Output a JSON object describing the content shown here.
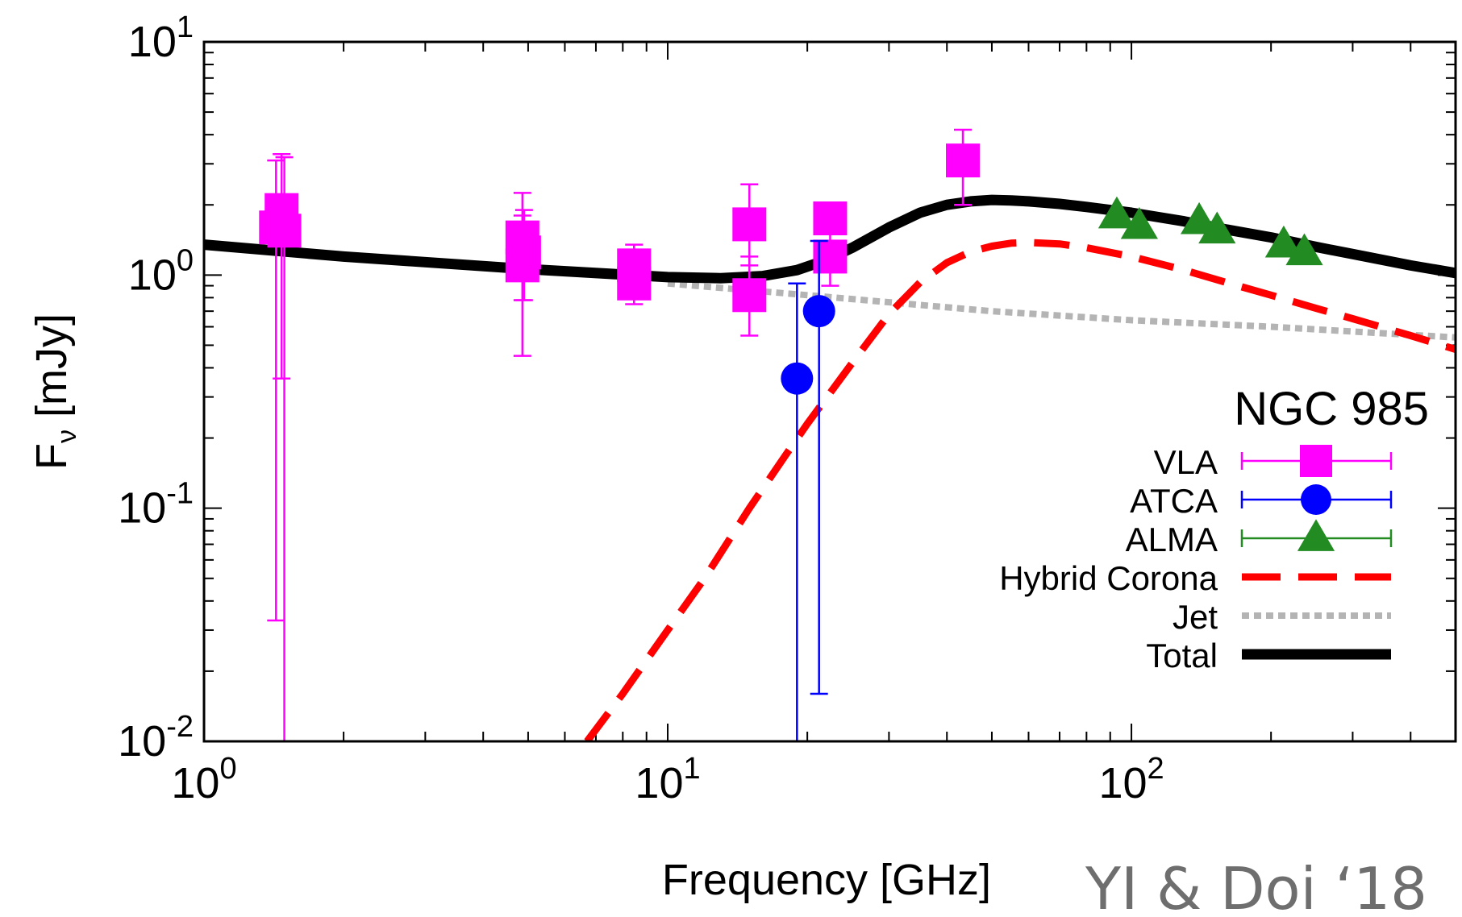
{
  "chart_data": {
    "type": "scatter",
    "title": "NGC 985",
    "xlabel": "Frequency [GHz]",
    "ylabel_main": "F",
    "ylabel_sub": "ν",
    "ylabel_unit": " [mJy]",
    "xscale": "log",
    "yscale": "log",
    "xlim": [
      1,
      500
    ],
    "ylim": [
      0.01,
      10
    ],
    "xticks": [
      {
        "base": "10",
        "exp": "0",
        "value": 1
      },
      {
        "base": "10",
        "exp": "1",
        "value": 10
      },
      {
        "base": "10",
        "exp": "2",
        "value": 100
      }
    ],
    "yticks": [
      {
        "base": "10",
        "exp": "-2",
        "value": 0.01
      },
      {
        "base": "10",
        "exp": "-1",
        "value": 0.1
      },
      {
        "base": "10",
        "exp": "0",
        "value": 1
      },
      {
        "base": "10",
        "exp": "1",
        "value": 10
      }
    ],
    "legend_position": "bottom-right",
    "credit": "YI & Doi ‘18",
    "series": [
      {
        "name": "VLA",
        "kind": "points",
        "marker": "square",
        "color": "#ff00ff",
        "points": [
          {
            "x": 1.43,
            "y": 1.6,
            "ylo": 0.033,
            "yhi": 3.1
          },
          {
            "x": 1.47,
            "y": 1.9,
            "ylo": 0.36,
            "yhi": 3.3
          },
          {
            "x": 1.49,
            "y": 1.55,
            "ylo": 0.0001,
            "yhi": 3.2
          },
          {
            "x": 4.86,
            "y": 1.45,
            "ylo": 0.78,
            "yhi": 2.25
          },
          {
            "x": 4.86,
            "y": 1.1,
            "ylo": 0.45,
            "yhi": 1.8
          },
          {
            "x": 4.9,
            "y": 1.25,
            "ylo": 0.78,
            "yhi": 1.9
          },
          {
            "x": 8.46,
            "y": 1.1,
            "ylo": 0.8,
            "yhi": 1.35
          },
          {
            "x": 8.46,
            "y": 0.92,
            "ylo": 0.75,
            "yhi": 1.1
          },
          {
            "x": 15.0,
            "y": 1.65,
            "ylo": 1.1,
            "yhi": 2.45
          },
          {
            "x": 15.0,
            "y": 0.82,
            "ylo": 0.55,
            "yhi": 1.2
          },
          {
            "x": 22.4,
            "y": 1.75,
            "ylo": 1.5,
            "yhi": 2.0
          },
          {
            "x": 22.4,
            "y": 1.2,
            "ylo": 0.9,
            "yhi": 1.5
          },
          {
            "x": 43.3,
            "y": 3.1,
            "ylo": 2.0,
            "yhi": 4.2
          }
        ]
      },
      {
        "name": "ATCA",
        "kind": "points",
        "marker": "circle",
        "color": "#0000ff",
        "points": [
          {
            "x": 19.0,
            "y": 0.36,
            "ylo": 0.0001,
            "yhi": 0.92
          },
          {
            "x": 21.2,
            "y": 0.7,
            "ylo": 0.016,
            "yhi": 1.4
          }
        ]
      },
      {
        "name": "ALMA",
        "kind": "points",
        "marker": "triangle",
        "color": "#228b22",
        "points": [
          {
            "x": 93,
            "y": 1.8
          },
          {
            "x": 104,
            "y": 1.62
          },
          {
            "x": 140,
            "y": 1.7
          },
          {
            "x": 153,
            "y": 1.55
          },
          {
            "x": 213,
            "y": 1.35
          },
          {
            "x": 236,
            "y": 1.25
          }
        ]
      },
      {
        "name": "Hybrid Corona",
        "kind": "line",
        "style": "dashed",
        "color": "#ff0000",
        "x": [
          6.7,
          8,
          10,
          12,
          15,
          18,
          20,
          25,
          30,
          35,
          40,
          45,
          50,
          55,
          60,
          70,
          80,
          100,
          130,
          160,
          200,
          250,
          300,
          400,
          500
        ],
        "y": [
          0.01,
          0.016,
          0.03,
          0.05,
          0.1,
          0.17,
          0.23,
          0.42,
          0.68,
          0.93,
          1.13,
          1.26,
          1.33,
          1.37,
          1.38,
          1.36,
          1.31,
          1.2,
          1.05,
          0.93,
          0.82,
          0.72,
          0.65,
          0.55,
          0.48
        ]
      },
      {
        "name": "Jet",
        "kind": "line",
        "style": "dotted",
        "color": "#b4b4b4",
        "x": [
          10,
          20,
          50,
          100,
          200,
          500
        ],
        "y": [
          0.92,
          0.82,
          0.7,
          0.64,
          0.6,
          0.54
        ]
      },
      {
        "name": "Total",
        "kind": "line",
        "style": "solid",
        "color": "#000000",
        "x": [
          1,
          2,
          5,
          10,
          13,
          16,
          19,
          22,
          25,
          30,
          35,
          40,
          45,
          50,
          55,
          60,
          70,
          80,
          100,
          130,
          160,
          200,
          250,
          300,
          400,
          500
        ],
        "y": [
          1.35,
          1.2,
          1.06,
          0.98,
          0.97,
          0.99,
          1.05,
          1.16,
          1.31,
          1.6,
          1.85,
          2.0,
          2.07,
          2.1,
          2.09,
          2.07,
          2.02,
          1.96,
          1.85,
          1.7,
          1.57,
          1.45,
          1.32,
          1.23,
          1.1,
          1.02
        ]
      }
    ]
  }
}
